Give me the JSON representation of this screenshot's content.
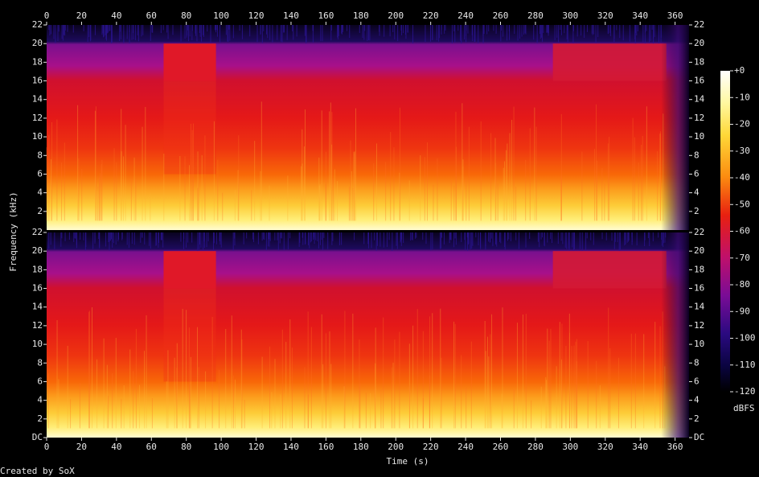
{
  "chart_data": {
    "type": "spectrogram",
    "x_label": "Time (s)",
    "y_label": "Frequency (kHz)",
    "colorbar_label": "dBFS",
    "footer": "Created by SoX",
    "xlim": [
      0,
      368
    ],
    "xticks": [
      0,
      20,
      40,
      60,
      80,
      100,
      120,
      140,
      160,
      180,
      200,
      220,
      240,
      260,
      280,
      300,
      320,
      340,
      360
    ],
    "panels": [
      {
        "ylim": [
          0,
          22
        ],
        "yticks": [
          2,
          4,
          6,
          8,
          10,
          12,
          14,
          16,
          18,
          20,
          22
        ]
      },
      {
        "ylim": [
          0,
          22
        ],
        "yticks": [
          {
            "value": 0,
            "label": "DC"
          },
          2,
          4,
          6,
          8,
          10,
          12,
          14,
          16,
          18,
          20,
          22
        ]
      }
    ],
    "colorbar": {
      "lim": [
        -120,
        0
      ],
      "ticks": [
        {
          "value": 0,
          "label": "+0"
        },
        -10,
        -20,
        -30,
        -40,
        -50,
        -60,
        -70,
        -80,
        -90,
        -100,
        -110,
        -120
      ]
    }
  }
}
